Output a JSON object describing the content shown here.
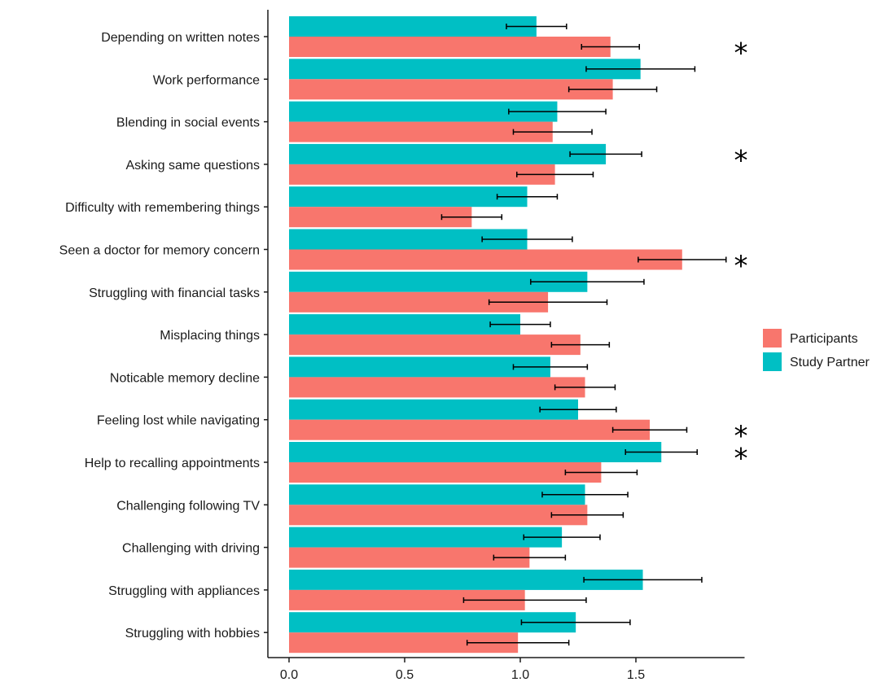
{
  "chart_data": {
    "type": "bar",
    "orientation": "horizontal",
    "categories": [
      "Depending on written notes",
      "Work performance",
      "Blending in social events",
      "Asking same questions",
      "Difficulty with remembering things",
      "Seen a doctor for memory concern",
      "Struggling with financial tasks",
      "Misplacing things",
      "Noticable memory decline",
      "Feeling lost while navigating",
      "Help to recalling appointments",
      "Challenging following TV",
      "Challenging with driving",
      "Struggling with appliances",
      "Struggling with hobbies"
    ],
    "series": [
      {
        "name": "Participants",
        "color": "#F8766D",
        "values": [
          1.39,
          1.4,
          1.14,
          1.15,
          0.79,
          1.7,
          1.12,
          1.26,
          1.28,
          1.56,
          1.35,
          1.29,
          1.04,
          1.02,
          0.99
        ],
        "err": [
          0.125,
          0.19,
          0.17,
          0.165,
          0.13,
          0.19,
          0.255,
          0.125,
          0.13,
          0.16,
          0.155,
          0.155,
          0.155,
          0.265,
          0.22
        ]
      },
      {
        "name": "Study Partner",
        "color": "#00BFC4",
        "values": [
          1.07,
          1.52,
          1.16,
          1.37,
          1.03,
          1.03,
          1.29,
          1.0,
          1.13,
          1.25,
          1.61,
          1.28,
          1.18,
          1.53,
          1.24
        ],
        "err": [
          0.13,
          0.235,
          0.21,
          0.155,
          0.13,
          0.195,
          0.245,
          0.13,
          0.16,
          0.165,
          0.155,
          0.185,
          0.165,
          0.255,
          0.235
        ]
      }
    ],
    "significant": [
      true,
      false,
      false,
      true,
      false,
      true,
      false,
      false,
      false,
      true,
      true,
      false,
      false,
      false,
      false
    ],
    "significance_marker": "*",
    "significance_rows": [
      {
        "row": 0,
        "series": 0
      },
      {
        "row": 3,
        "series": 1
      },
      {
        "row": 5,
        "series": 0
      },
      {
        "row": 9,
        "series": 0
      },
      {
        "row": 10,
        "series": 1
      }
    ],
    "xlim": [
      0,
      1.97
    ],
    "xticks": [
      0.0,
      0.5,
      1.0,
      1.5
    ],
    "xtick_labels": [
      "0.0",
      "0.5",
      "1.0",
      "1.5"
    ],
    "title": "",
    "xlabel": "",
    "ylabel": "",
    "grid": false,
    "legend": {
      "position": "right",
      "entries": [
        "Participants",
        "Study Partner"
      ]
    }
  }
}
